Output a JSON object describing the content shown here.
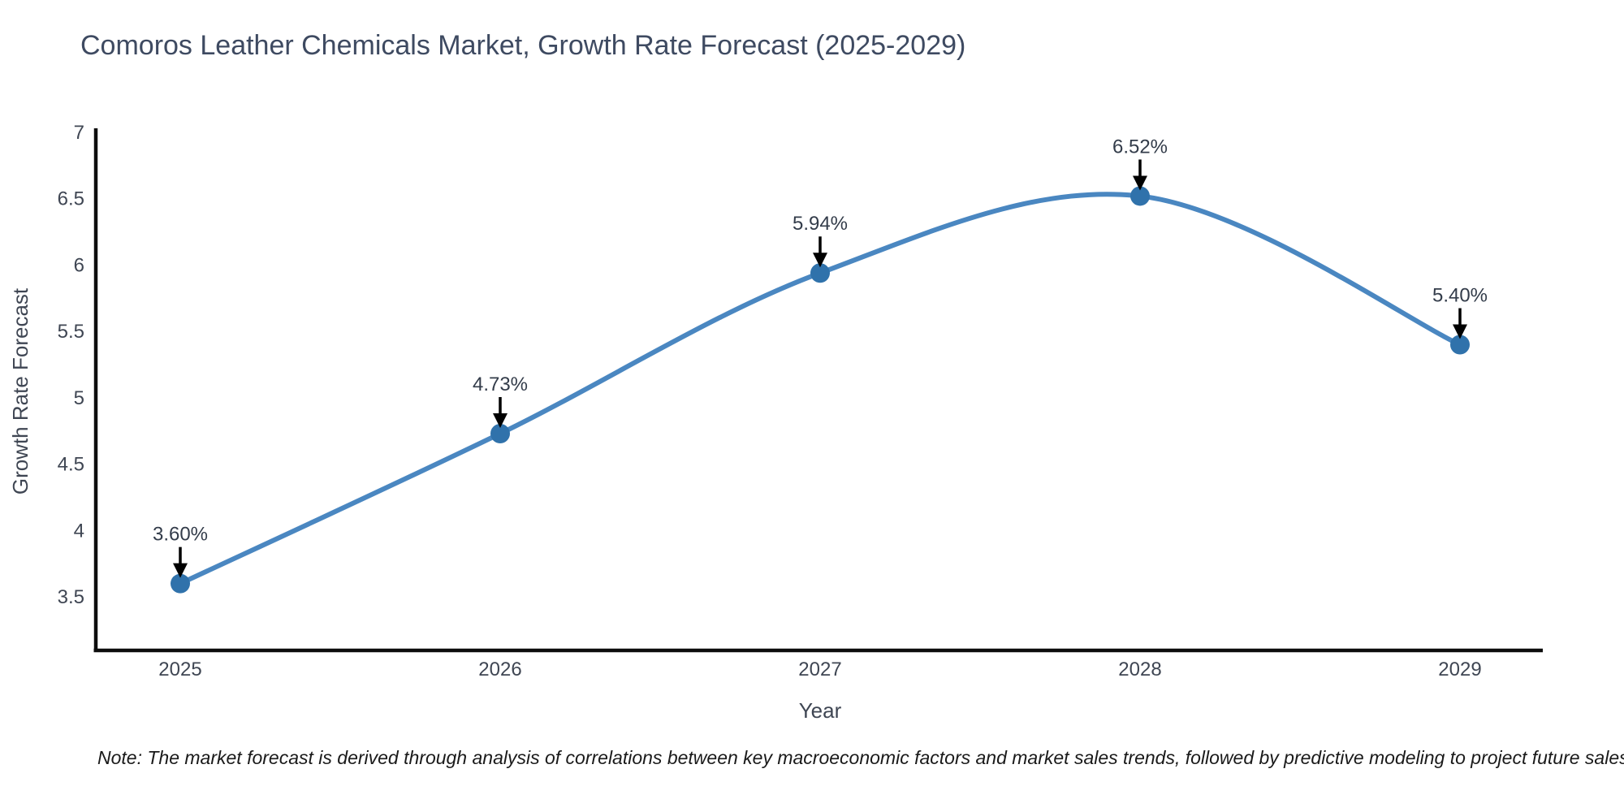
{
  "chart_data": {
    "type": "line",
    "title": "Comoros Leather Chemicals Market, Growth Rate Forecast (2025-2029)",
    "xlabel": "Year",
    "ylabel": "Growth Rate Forecast",
    "categories": [
      "2025",
      "2026",
      "2027",
      "2028",
      "2029"
    ],
    "x": [
      2025,
      2026,
      2027,
      2028,
      2029
    ],
    "values": [
      3.6,
      4.73,
      5.94,
      6.52,
      5.4
    ],
    "point_labels": [
      "3.60%",
      "4.73%",
      "5.94%",
      "6.52%",
      "5.40%"
    ],
    "y_ticks": [
      7,
      6.5,
      6,
      5.5,
      5,
      4.5,
      4,
      3.5
    ],
    "ylim": [
      3.1,
      7.02
    ],
    "xlim": [
      2024.74,
      2029.26
    ],
    "grid": false,
    "legend": "none",
    "line_smooth": true,
    "note": "Note: The market forecast is derived through analysis of correlations between key macroeconomic factors and market sales trends, followed by predictive modeling to project future sales",
    "colors": {
      "line": "#4a87c1",
      "marker": "#3072ab",
      "arrow": "#000000",
      "spine": "#0d0d0d",
      "title": "#3e4a61",
      "tick": "#3f4653",
      "annotation": "#333c4a",
      "note": "#1a1a1a",
      "background": "#ffffff"
    }
  }
}
